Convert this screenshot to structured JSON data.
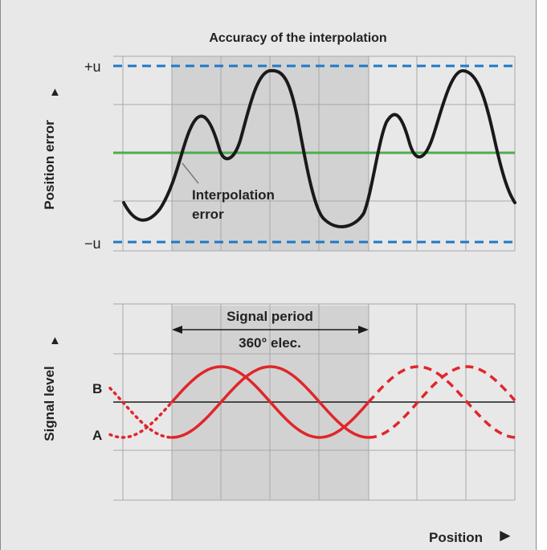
{
  "top_chart": {
    "title": "Accuracy of the interpolation",
    "y_axis_label": "Position error",
    "upper_limit_label": "+u",
    "lower_limit_label": "−u",
    "annotation": [
      "Interpolation",
      "error"
    ],
    "colors": {
      "limit": "#1f78c8",
      "zero": "#4cae4c",
      "curve": "#1a1a1a",
      "shade": "#d2d2d2",
      "grid": "#a8a8a8"
    }
  },
  "bottom_chart": {
    "y_axis_label": "Signal level",
    "signal_period_label": "Signal period",
    "signal_period_value": "360° elec.",
    "series_labels": [
      "B",
      "A"
    ],
    "colors": {
      "signal": "#e0262a",
      "axis": "#1a1a1a",
      "shade": "#d2d2d2",
      "grid": "#a8a8a8"
    }
  },
  "x_axis_label": "Position",
  "arrow_glyph": "▲",
  "position_arrow_glyph": "►"
}
